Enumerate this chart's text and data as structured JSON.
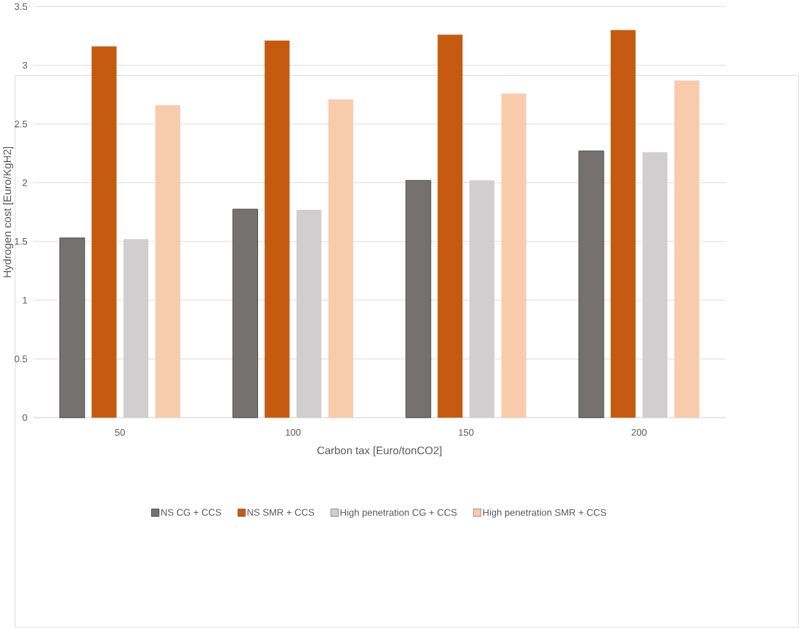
{
  "chart_data": {
    "type": "bar",
    "xlabel": "Carbon tax [Euro/tonCO2]",
    "ylabel": "Hydrogen cost [Euro/KgH2]",
    "categories": [
      "50",
      "100",
      "150",
      "200"
    ],
    "series": [
      {
        "name": "NS CG + CCS",
        "color": "#767171",
        "values": [
          1.53,
          1.775,
          2.02,
          2.27
        ]
      },
      {
        "name": "NS SMR + CCS",
        "color": "#c55a11",
        "values": [
          3.16,
          3.21,
          3.26,
          3.3
        ]
      },
      {
        "name": "High penetration CG + CCS",
        "color": "#d0cece",
        "values": [
          1.52,
          1.77,
          2.02,
          2.26
        ]
      },
      {
        "name": "High penetration SMR + CCS",
        "color": "#f8cbad",
        "values": [
          2.66,
          2.71,
          2.76,
          2.87
        ]
      }
    ],
    "ylim": [
      0,
      3.5
    ],
    "yticks": [
      0,
      0.5,
      1,
      1.5,
      2,
      2.5,
      3,
      3.5
    ],
    "grid": "y",
    "legend": "bottom"
  }
}
